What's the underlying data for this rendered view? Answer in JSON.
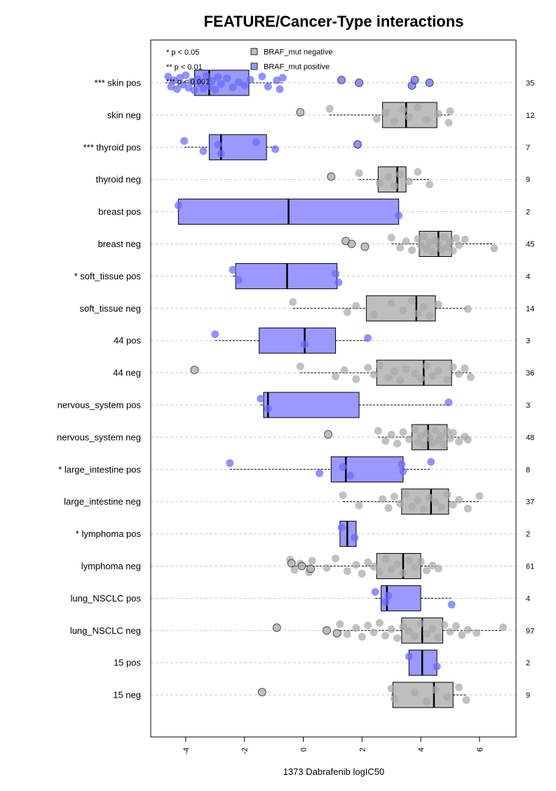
{
  "chart_data": {
    "type": "box",
    "title": "FEATURE/Cancer-Type interactions",
    "xlabel": "1373 Dabrafenib logIC50",
    "xlim": [
      -5.2,
      7.2
    ],
    "x_ticks": [
      -4,
      -2,
      0,
      2,
      4,
      6
    ],
    "x_tick_labels": [
      "-4",
      "-2",
      "0",
      "2",
      "4",
      "6"
    ],
    "orientation": "horizontal",
    "grid": "dashed horizontal lines per row",
    "legend_position": "top-left",
    "legend": [
      {
        "label": "BRAF_mut negative",
        "color": "#bebebe"
      },
      {
        "label": "BRAF_mut positive",
        "color": "#9999ff"
      }
    ],
    "significance_notes": [
      "* p < 0.05",
      "** p < 0.01",
      "*** p < 0.001"
    ],
    "colors": {
      "neg_box": "#bebebe",
      "pos_box": "#9999ff",
      "neg_point": "#a9a9a9",
      "pos_point": "#6a6aff"
    },
    "rows": [
      {
        "label": "*** skin pos",
        "group": "pos",
        "n": "35",
        "q1": -3.7,
        "median": -3.2,
        "q3": -1.85,
        "wmin": -4.7,
        "wmax": -0.7,
        "points": [
          -4.6,
          -4.5,
          -4.4,
          -4.3,
          -4.2,
          -4.1,
          -4.0,
          -3.9,
          -3.8,
          -3.7,
          -3.6,
          -3.5,
          -3.4,
          -3.3,
          -3.2,
          -3.1,
          -3.0,
          -2.9,
          -2.8,
          -2.6,
          -2.4,
          -2.2,
          -2.0,
          -1.8,
          -1.4,
          -1.2,
          -0.9,
          -0.8,
          -0.7
        ],
        "outliers": [
          1.3,
          1.9,
          3.7,
          3.8,
          4.3
        ]
      },
      {
        "label": "skin neg",
        "group": "neg",
        "n": "12",
        "q1": 2.7,
        "median": 3.5,
        "q3": 4.55,
        "wmin": 0.9,
        "wmax": 5.0,
        "points": [
          0.9,
          2.5,
          2.8,
          3.1,
          3.4,
          3.6,
          3.9,
          4.2,
          4.6,
          4.95,
          5.0
        ],
        "outliers": [
          -0.1
        ]
      },
      {
        "label": "*** thyroid pos",
        "group": "pos",
        "n": "7",
        "q1": -3.2,
        "median": -2.8,
        "q3": -1.25,
        "wmin": -4.05,
        "wmax": -0.95,
        "points": [
          -4.05,
          -3.4,
          -2.9,
          -2.8,
          -1.6,
          -0.95
        ],
        "outliers": [
          1.85
        ]
      },
      {
        "label": "thyroid neg",
        "group": "neg",
        "n": "9",
        "q1": 2.55,
        "median": 3.2,
        "q3": 3.5,
        "wmin": 1.9,
        "wmax": 4.3,
        "points": [
          1.9,
          2.6,
          2.9,
          3.1,
          3.3,
          3.6,
          3.9,
          4.3
        ],
        "outliers": [
          0.95
        ]
      },
      {
        "label": "breast pos",
        "group": "pos",
        "n": "2",
        "q1": -4.25,
        "median": -0.5,
        "q3": 3.25,
        "wmin": -4.25,
        "wmax": 3.25,
        "points": [
          -4.25,
          3.25
        ],
        "outliers": []
      },
      {
        "label": "breast neg",
        "group": "neg",
        "n": "45",
        "q1": 3.95,
        "median": 4.6,
        "q3": 5.05,
        "wmin": 3.0,
        "wmax": 6.5,
        "points": [
          3.0,
          3.3,
          3.5,
          3.7,
          3.9,
          4.0,
          4.1,
          4.2,
          4.3,
          4.4,
          4.5,
          4.6,
          4.7,
          4.8,
          4.9,
          5.0,
          5.1,
          5.2,
          5.3,
          5.5,
          6.5
        ],
        "outliers": [
          1.45,
          1.65,
          2.1
        ]
      },
      {
        "label": "* soft_tissue pos",
        "group": "pos",
        "n": "4",
        "q1": -2.3,
        "median": -0.55,
        "q3": 1.15,
        "wmin": -2.4,
        "wmax": 1.2,
        "points": [
          -2.4,
          -2.2,
          1.1,
          1.2
        ],
        "outliers": []
      },
      {
        "label": "soft_tissue neg",
        "group": "neg",
        "n": "14",
        "q1": 2.15,
        "median": 3.85,
        "q3": 4.5,
        "wmin": -0.35,
        "wmax": 5.6,
        "points": [
          -0.35,
          1.5,
          1.8,
          2.4,
          3.0,
          3.4,
          3.7,
          3.9,
          4.1,
          4.3,
          4.6,
          5.6
        ],
        "outliers": []
      },
      {
        "label": "44 pos",
        "group": "pos",
        "n": "3",
        "q1": -1.5,
        "median": 0.05,
        "q3": 1.1,
        "wmin": -3.0,
        "wmax": 2.2,
        "points": [
          -3.0,
          0.05,
          2.2
        ],
        "outliers": []
      },
      {
        "label": "44 neg",
        "group": "neg",
        "n": "36",
        "q1": 2.5,
        "median": 4.1,
        "q3": 5.05,
        "wmin": -0.1,
        "wmax": 5.7,
        "points": [
          -0.1,
          1.1,
          1.4,
          1.8,
          2.2,
          2.4,
          2.6,
          2.9,
          3.1,
          3.3,
          3.5,
          3.8,
          4.0,
          4.2,
          4.4,
          4.6,
          4.9,
          5.1,
          5.3,
          5.5,
          5.7
        ],
        "outliers": [
          -3.7
        ]
      },
      {
        "label": "nervous_system pos",
        "group": "pos",
        "n": "3",
        "q1": -1.35,
        "median": -1.2,
        "q3": 1.9,
        "wmin": -1.45,
        "wmax": 4.95,
        "points": [
          -1.45,
          -1.2,
          4.95
        ],
        "outliers": []
      },
      {
        "label": "nervous_system neg",
        "group": "neg",
        "n": "48",
        "q1": 3.7,
        "median": 4.25,
        "q3": 4.9,
        "wmin": 2.55,
        "wmax": 5.6,
        "points": [
          2.55,
          2.8,
          3.0,
          3.2,
          3.4,
          3.6,
          3.8,
          3.9,
          4.0,
          4.1,
          4.2,
          4.3,
          4.4,
          4.5,
          4.6,
          4.7,
          4.8,
          4.9,
          5.0,
          5.1,
          5.3,
          5.5,
          5.6
        ],
        "outliers": [
          0.85
        ]
      },
      {
        "label": "* large_intestine pos",
        "group": "pos",
        "n": "8",
        "q1": 0.95,
        "median": 1.45,
        "q3": 3.4,
        "wmin": -2.5,
        "wmax": 4.35,
        "points": [
          -2.5,
          0.55,
          1.35,
          1.6,
          3.35,
          3.4,
          4.35
        ],
        "outliers": []
      },
      {
        "label": "large_intestine neg",
        "group": "neg",
        "n": "37",
        "q1": 3.35,
        "median": 4.35,
        "q3": 4.95,
        "wmin": 1.35,
        "wmax": 6.0,
        "points": [
          1.35,
          1.9,
          2.7,
          2.9,
          3.1,
          3.3,
          3.5,
          3.7,
          3.9,
          4.1,
          4.3,
          4.5,
          4.7,
          4.9,
          5.1,
          5.3,
          5.6,
          6.0
        ],
        "outliers": []
      },
      {
        "label": "* lymphoma pos",
        "group": "pos",
        "n": "2",
        "q1": 1.25,
        "median": 1.5,
        "q3": 1.8,
        "wmin": 1.25,
        "wmax": 1.8,
        "points": [
          1.3,
          1.75
        ],
        "outliers": []
      },
      {
        "label": "lymphoma neg",
        "group": "neg",
        "n": "61",
        "q1": 2.5,
        "median": 3.4,
        "q3": 4.0,
        "wmin": -0.4,
        "wmax": 4.6,
        "points": [
          -0.45,
          -0.3,
          -0.1,
          0.2,
          0.3,
          0.8,
          1.1,
          1.5,
          1.8,
          2.0,
          2.2,
          2.4,
          2.6,
          2.8,
          3.0,
          3.2,
          3.4,
          3.6,
          3.8,
          4.0,
          4.2,
          4.4,
          4.6
        ],
        "outliers": [
          -0.4,
          -0.05,
          0.25
        ]
      },
      {
        "label": "lung_NSCLC pos",
        "group": "pos",
        "n": "4",
        "q1": 2.65,
        "median": 2.85,
        "q3": 4.0,
        "wmin": 2.45,
        "wmax": 5.05,
        "points": [
          2.45,
          2.8,
          2.9,
          5.05
        ],
        "outliers": []
      },
      {
        "label": "lung_NSCLC neg",
        "group": "neg",
        "n": "97",
        "q1": 3.35,
        "median": 4.05,
        "q3": 4.75,
        "wmin": 1.25,
        "wmax": 6.8,
        "points": [
          1.25,
          1.5,
          1.8,
          2.0,
          2.2,
          2.4,
          2.6,
          2.8,
          3.0,
          3.2,
          3.4,
          3.6,
          3.8,
          4.0,
          4.2,
          4.4,
          4.6,
          4.8,
          5.0,
          5.2,
          5.4,
          5.6,
          5.9,
          6.8
        ],
        "outliers": [
          -0.9,
          0.8,
          1.15
        ]
      },
      {
        "label": "15 pos",
        "group": "pos",
        "n": "2",
        "q1": 3.6,
        "median": 4.05,
        "q3": 4.55,
        "wmin": 3.6,
        "wmax": 4.55,
        "points": [
          3.6,
          4.55
        ],
        "outliers": []
      },
      {
        "label": "15 neg",
        "group": "neg",
        "n": "9",
        "q1": 3.05,
        "median": 4.45,
        "q3": 5.1,
        "wmin": 3.0,
        "wmax": 5.55,
        "points": [
          3.0,
          3.1,
          3.8,
          4.2,
          4.5,
          4.9,
          5.3,
          5.55
        ],
        "outliers": [
          -1.4
        ]
      }
    ]
  }
}
